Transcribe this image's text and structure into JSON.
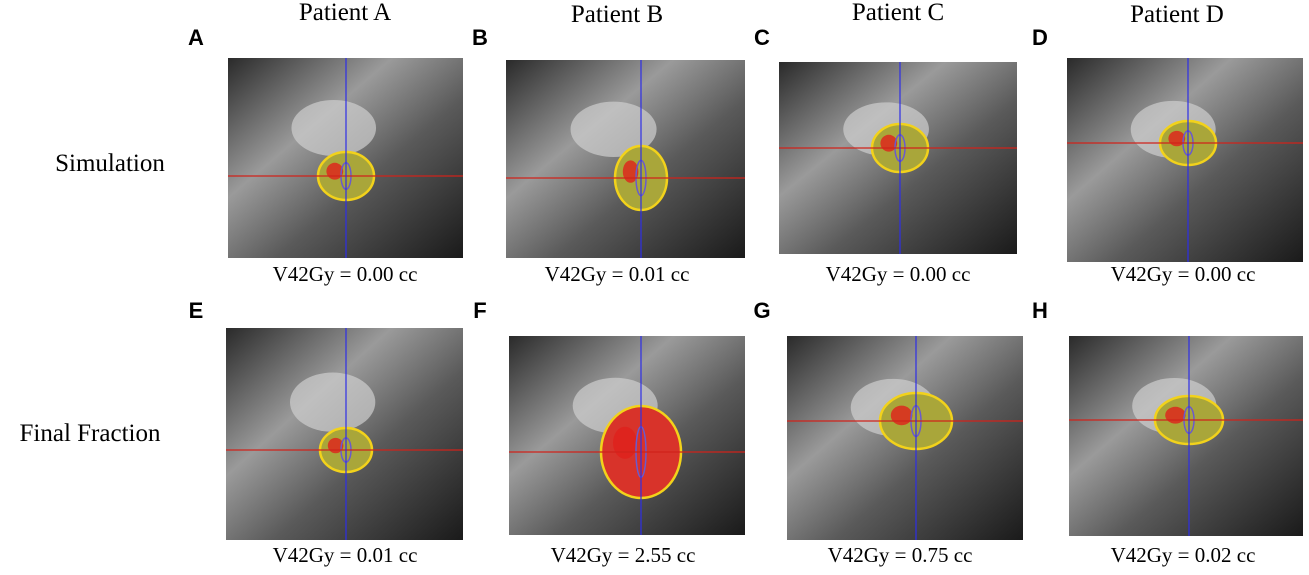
{
  "columns": [
    "Patient A",
    "Patient B",
    "Patient C",
    "Patient D"
  ],
  "rows": [
    "Simulation",
    "Final Fraction"
  ],
  "panels": [
    {
      "letter": "A",
      "caption": "V42Gy = 0.00 cc"
    },
    {
      "letter": "B",
      "caption": "V42Gy = 0.01 cc"
    },
    {
      "letter": "C",
      "caption": "V42Gy = 0.00 cc"
    },
    {
      "letter": "D",
      "caption": "V42Gy = 0.00 cc"
    },
    {
      "letter": "E",
      "caption": "V42Gy = 0.01 cc"
    },
    {
      "letter": "F",
      "caption": "V42Gy = 2.55 cc"
    },
    {
      "letter": "G",
      "caption": "V42Gy = 0.75 cc"
    },
    {
      "letter": "H",
      "caption": "V42Gy = 0.02 cc"
    }
  ]
}
